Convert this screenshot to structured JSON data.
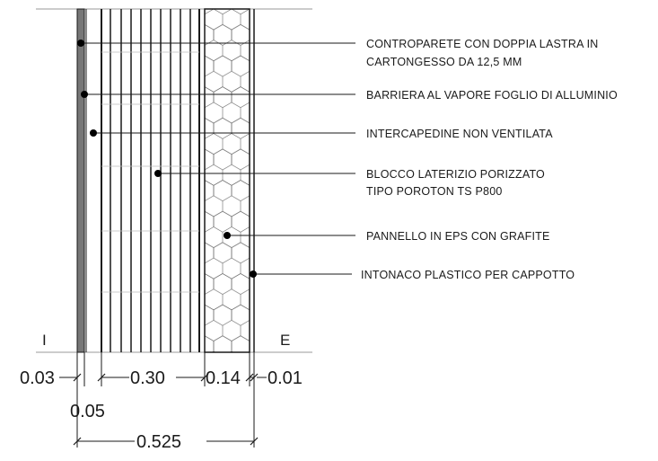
{
  "labels": {
    "l1_line1": "CONTROPARETE CON DOPPIA LASTRA IN",
    "l1_line2": "CARTONGESSO DA 12,5 MM",
    "l2": "BARRIERA AL VAPORE FOGLIO DI ALLUMINIO",
    "l3": "INTERCAPEDINE NON VENTILATA",
    "l4_line1": "BLOCCO LATERIZIO PORIZZATO",
    "l4_line2": "TIPO POROTON TS P800",
    "l5": "PANNELLO IN EPS CON GRAFITE",
    "l6": "INTONACO PLASTICO PER CAPPOTTO"
  },
  "sides": {
    "interior": "I",
    "exterior": "E"
  },
  "dimensions": {
    "d_plaster_in": "0.03",
    "d_gap": "0.05",
    "d_block": "0.30",
    "d_eps": "0.14",
    "d_plaster_out": "0.01",
    "d_total": "0.525"
  },
  "colors": {
    "line": "#1a1a1a",
    "board": "#777777",
    "hatch": "#666666"
  }
}
